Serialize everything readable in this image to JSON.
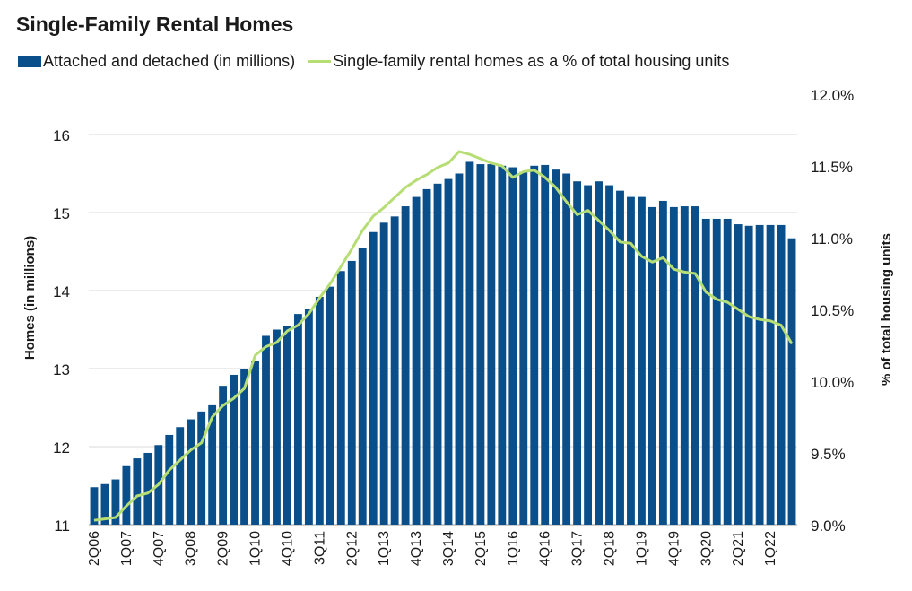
{
  "chart_data": {
    "type": "bar+line",
    "title": "Single-Family Rental Homes",
    "legend": [
      "Attached and detached (in millions)",
      "Single-family rental homes as a % of total housing units"
    ],
    "ylabel_left": "Homes (in millions)",
    "ylabel_right": "% of total housing units",
    "ylim_left": [
      11,
      16.5
    ],
    "yticks_left": [
      "11",
      "12",
      "13",
      "14",
      "15",
      "16"
    ],
    "ylim_right": [
      9.0,
      12.0
    ],
    "yticks_right": [
      "9.0%",
      "9.5%",
      "10.0%",
      "10.5%",
      "11.0%",
      "11.5%",
      "12.0%"
    ],
    "x_tick_labels": [
      "2Q06",
      "1Q07",
      "4Q07",
      "3Q08",
      "2Q09",
      "1Q10",
      "4Q10",
      "3Q11",
      "2Q12",
      "1Q13",
      "4Q13",
      "3Q14",
      "2Q15",
      "1Q16",
      "4Q16",
      "3Q17",
      "2Q18",
      "1Q19",
      "4Q19",
      "3Q20",
      "2Q21",
      "1Q22"
    ],
    "grid": "horizontal",
    "colors": {
      "bars": "#0b4f8a",
      "line": "#b7dd75",
      "grid": "#d9d9d9"
    },
    "series": [
      {
        "name": "Attached and detached (in millions)",
        "kind": "bar",
        "values": [
          11.48,
          11.52,
          11.58,
          11.75,
          11.85,
          11.92,
          12.02,
          12.15,
          12.25,
          12.35,
          12.45,
          12.53,
          12.78,
          12.92,
          13.0,
          13.1,
          13.42,
          13.5,
          13.55,
          13.7,
          13.76,
          13.92,
          14.05,
          14.25,
          14.38,
          14.55,
          14.75,
          14.87,
          14.95,
          15.08,
          15.2,
          15.3,
          15.37,
          15.43,
          15.5,
          15.65,
          15.62,
          15.62,
          15.6,
          15.58,
          15.52,
          15.6,
          15.61,
          15.55,
          15.5,
          15.4,
          15.35,
          15.4,
          15.35,
          15.28,
          15.2,
          15.2,
          15.07,
          15.15,
          15.07,
          15.08,
          15.08,
          14.92,
          14.92,
          14.92,
          14.85,
          14.83,
          14.84,
          14.84,
          14.84,
          14.67
        ]
      },
      {
        "name": "Single-family rental homes as a % of total housing units",
        "kind": "line",
        "axis": "right",
        "values": [
          9.03,
          9.04,
          9.05,
          9.13,
          9.2,
          9.22,
          9.28,
          9.38,
          9.45,
          9.52,
          9.57,
          9.75,
          9.83,
          9.88,
          9.95,
          10.18,
          10.24,
          10.27,
          10.35,
          10.39,
          10.47,
          10.58,
          10.68,
          10.8,
          10.92,
          11.05,
          11.15,
          11.21,
          11.28,
          11.35,
          11.4,
          11.44,
          11.49,
          11.52,
          11.6,
          11.58,
          11.55,
          11.52,
          11.5,
          11.42,
          11.46,
          11.47,
          11.42,
          11.35,
          11.25,
          11.16,
          11.19,
          11.12,
          11.05,
          10.97,
          10.96,
          10.87,
          10.83,
          10.86,
          10.78,
          10.76,
          10.75,
          10.62,
          10.57,
          10.55,
          10.5,
          10.45,
          10.43,
          10.42,
          10.39,
          10.26
        ]
      }
    ]
  }
}
